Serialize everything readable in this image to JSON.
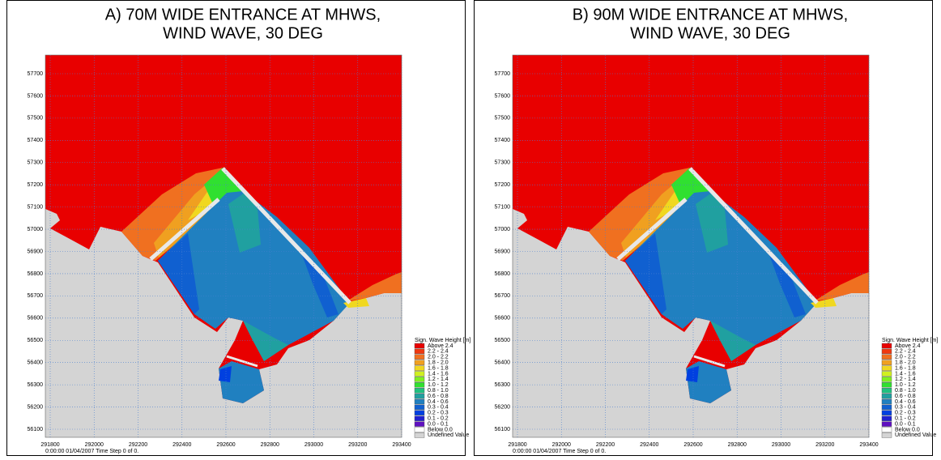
{
  "panels": [
    {
      "title": [
        "A) 70M WIDE ENTRANCE AT MHWS,",
        "WIND WAVE, 30 DEG"
      ],
      "footer": "0:00:00 01/04/2007  Time Step 0 of 0."
    },
    {
      "title": [
        "B) 90M WIDE ENTRANCE AT MHWS,",
        "WIND WAVE, 30 DEG"
      ],
      "footer": "0:00:00 01/04/2007  Time Step 0 of 0."
    }
  ],
  "yticks": [
    57700,
    57600,
    57500,
    57400,
    57300,
    57200,
    57100,
    57000,
    56900,
    56800,
    56700,
    56600,
    56500,
    56400,
    56300,
    56200,
    56100
  ],
  "xticks": [
    291800,
    292000,
    292200,
    292400,
    292600,
    292800,
    293000,
    293200,
    293400
  ],
  "legend": {
    "title": "Sign. Wave Height [m]",
    "items": [
      {
        "label": "Above 2.4",
        "color": "#e80000"
      },
      {
        "label": "2.2 - 2.4",
        "color": "#f03810"
      },
      {
        "label": "2.0 - 2.2",
        "color": "#f07020"
      },
      {
        "label": "1.8 - 2.0",
        "color": "#f0a020"
      },
      {
        "label": "1.6 - 1.8",
        "color": "#f0d820"
      },
      {
        "label": "1.4 - 1.6",
        "color": "#d0f020"
      },
      {
        "label": "1.2 - 1.4",
        "color": "#80f020"
      },
      {
        "label": "1.0 - 1.2",
        "color": "#30e030"
      },
      {
        "label": "0.8 - 1.0",
        "color": "#20c080"
      },
      {
        "label": "0.6 - 0.8",
        "color": "#20a0a0"
      },
      {
        "label": "0.4 - 0.6",
        "color": "#2080c0"
      },
      {
        "label": "0.3 - 0.4",
        "color": "#1060d0"
      },
      {
        "label": "0.2 - 0.3",
        "color": "#0040e0"
      },
      {
        "label": "0.1 - 0.2",
        "color": "#2020d0"
      },
      {
        "label": "0.0 - 0.1",
        "color": "#6010c0"
      },
      {
        "label": "Below 0.0",
        "color": "#ffffff"
      },
      {
        "label": "Undefined Value",
        "color": "#d4d4d4"
      }
    ]
  }
}
